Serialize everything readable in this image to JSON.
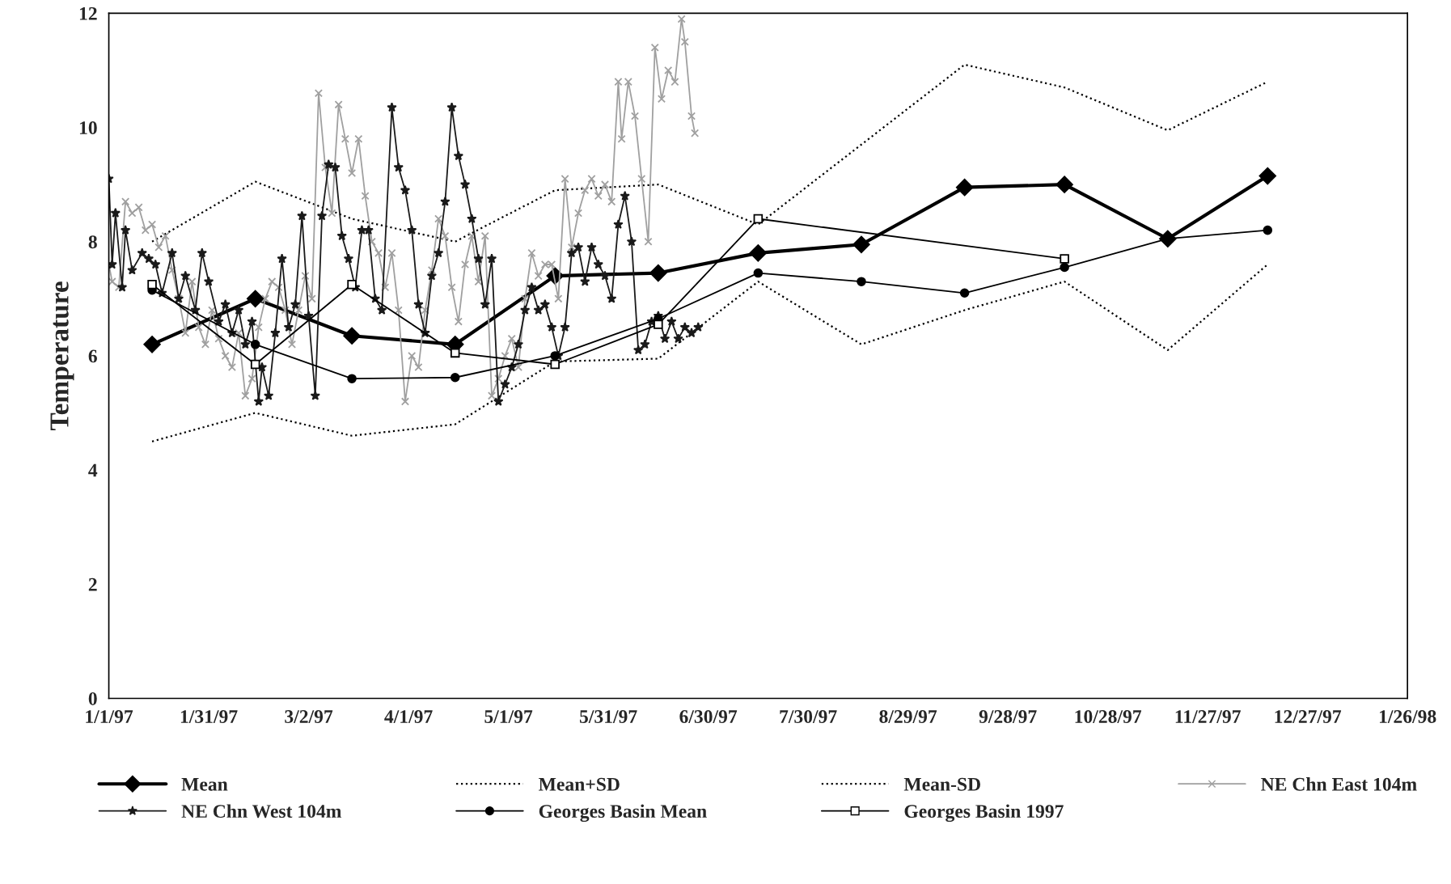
{
  "chart_data": {
    "type": "line",
    "ylabel": "Temperature",
    "ylim": [
      0,
      12
    ],
    "yticks": [
      0,
      2,
      4,
      6,
      8,
      10,
      12
    ],
    "xlim": [
      "1997-01-01",
      "1998-01-26"
    ],
    "xticks": [
      {
        "value": "1997-01-01",
        "label": "1/1/97"
      },
      {
        "value": "1997-01-31",
        "label": "1/31/97"
      },
      {
        "value": "1997-03-02",
        "label": "3/2/97"
      },
      {
        "value": "1997-04-01",
        "label": "4/1/97"
      },
      {
        "value": "1997-05-01",
        "label": "5/1/97"
      },
      {
        "value": "1997-05-31",
        "label": "5/31/97"
      },
      {
        "value": "1997-06-30",
        "label": "6/30/97"
      },
      {
        "value": "1997-07-30",
        "label": "7/30/97"
      },
      {
        "value": "1997-08-29",
        "label": "8/29/97"
      },
      {
        "value": "1997-09-28",
        "label": "9/28/97"
      },
      {
        "value": "1997-10-28",
        "label": "10/28/97"
      },
      {
        "value": "1997-11-27",
        "label": "11/27/97"
      },
      {
        "value": "1997-12-27",
        "label": "12/27/97"
      },
      {
        "value": "1998-01-26",
        "label": "1/26/98"
      }
    ],
    "grid": false,
    "legend": "bottom",
    "series": [
      {
        "name": "Mean",
        "color": "#000000",
        "marker": "diamond",
        "line_style": "solid",
        "x": [
          "1997-01-14",
          "1997-02-14",
          "1997-03-15",
          "1997-04-15",
          "1997-05-15",
          "1997-06-15",
          "1997-07-15",
          "1997-08-15",
          "1997-09-15",
          "1997-10-15",
          "1997-11-15",
          "1997-12-15"
        ],
        "values": [
          6.2,
          7.0,
          6.35,
          6.2,
          7.4,
          7.45,
          7.8,
          7.95,
          8.95,
          9.0,
          8.05,
          9.15
        ]
      },
      {
        "name": "Mean+SD",
        "color": "#000000",
        "marker": "none",
        "line_style": "dotted",
        "x": [
          "1997-01-14",
          "1997-02-14",
          "1997-03-15",
          "1997-04-15",
          "1997-05-15",
          "1997-06-15",
          "1997-07-15",
          "1997-08-15",
          "1997-09-15",
          "1997-10-15",
          "1997-11-15",
          "1997-12-15"
        ],
        "values": [
          8.0,
          9.05,
          8.4,
          8.0,
          8.9,
          9.0,
          8.3,
          9.7,
          11.1,
          10.7,
          9.95,
          10.8
        ]
      },
      {
        "name": "Mean-SD",
        "color": "#000000",
        "marker": "none",
        "line_style": "dotted",
        "x": [
          "1997-01-14",
          "1997-02-14",
          "1997-03-15",
          "1997-04-15",
          "1997-05-15",
          "1997-06-15",
          "1997-07-15",
          "1997-08-15",
          "1997-09-15",
          "1997-10-15",
          "1997-11-15",
          "1997-12-15"
        ],
        "values": [
          4.5,
          5.0,
          4.6,
          4.8,
          5.9,
          5.95,
          7.3,
          6.2,
          6.8,
          7.3,
          6.1,
          7.6
        ]
      },
      {
        "name": "NE Chn East 104m",
        "color": "#a0a0a0",
        "marker": "cross",
        "line_style": "solid",
        "x": [
          "1997-01-01",
          "1997-01-02",
          "1997-01-04",
          "1997-01-06",
          "1997-01-08",
          "1997-01-10",
          "1997-01-12",
          "1997-01-14",
          "1997-01-16",
          "1997-01-18",
          "1997-01-20",
          "1997-01-22",
          "1997-01-24",
          "1997-01-26",
          "1997-01-28",
          "1997-01-30",
          "1997-02-01",
          "1997-02-03",
          "1997-02-05",
          "1997-02-07",
          "1997-02-09",
          "1997-02-11",
          "1997-02-13",
          "1997-02-15",
          "1997-02-17",
          "1997-02-19",
          "1997-02-21",
          "1997-02-23",
          "1997-02-25",
          "1997-02-27",
          "1997-03-01",
          "1997-03-03",
          "1997-03-05",
          "1997-03-07",
          "1997-03-09",
          "1997-03-11",
          "1997-03-13",
          "1997-03-15",
          "1997-03-17",
          "1997-03-19",
          "1997-03-21",
          "1997-03-23",
          "1997-03-25",
          "1997-03-27",
          "1997-03-29",
          "1997-03-31",
          "1997-04-02",
          "1997-04-04",
          "1997-04-06",
          "1997-04-08",
          "1997-04-10",
          "1997-04-12",
          "1997-04-14",
          "1997-04-16",
          "1997-04-18",
          "1997-04-20",
          "1997-04-22",
          "1997-04-24",
          "1997-04-26",
          "1997-04-28",
          "1997-04-30",
          "1997-05-02",
          "1997-05-04",
          "1997-05-06",
          "1997-05-08",
          "1997-05-10",
          "1997-05-12",
          "1997-05-14",
          "1997-05-16",
          "1997-05-18",
          "1997-05-20",
          "1997-05-22",
          "1997-05-24",
          "1997-05-26",
          "1997-05-28",
          "1997-05-30",
          "1997-06-01",
          "1997-06-03",
          "1997-06-04",
          "1997-06-06",
          "1997-06-08",
          "1997-06-10",
          "1997-06-12",
          "1997-06-14",
          "1997-06-16",
          "1997-06-18",
          "1997-06-20",
          "1997-06-22",
          "1997-06-23",
          "1997-06-25",
          "1997-06-26"
        ],
        "values": [
          7.6,
          7.3,
          7.2,
          8.7,
          8.5,
          8.6,
          8.2,
          8.3,
          7.9,
          8.1,
          7.5,
          7.0,
          6.4,
          7.3,
          6.5,
          6.2,
          6.8,
          6.3,
          6.0,
          5.8,
          6.4,
          5.3,
          5.6,
          6.5,
          7.0,
          7.3,
          7.2,
          6.8,
          6.2,
          6.8,
          7.4,
          7.0,
          10.6,
          9.3,
          8.5,
          10.4,
          9.8,
          9.2,
          9.8,
          8.8,
          8.0,
          7.8,
          7.2,
          7.8,
          6.8,
          5.2,
          6.0,
          5.8,
          6.8,
          7.5,
          8.4,
          8.1,
          7.2,
          6.6,
          7.6,
          8.1,
          7.3,
          8.1,
          5.3,
          5.6,
          6.0,
          6.3,
          5.8,
          7.0,
          7.8,
          7.4,
          7.6,
          7.6,
          7.0,
          9.1,
          7.9,
          8.5,
          8.9,
          9.1,
          8.8,
          9.0,
          8.7,
          10.8,
          9.8,
          10.8,
          10.2,
          9.1,
          8.0,
          11.4,
          10.5,
          11.0,
          10.8,
          11.9,
          11.5,
          10.2,
          9.9
        ]
      },
      {
        "name": "NE Chn West 104m",
        "color": "#1a1a1a",
        "marker": "star",
        "line_style": "solid",
        "x": [
          "1997-01-01",
          "1997-01-02",
          "1997-01-03",
          "1997-01-05",
          "1997-01-06",
          "1997-01-08",
          "1997-01-11",
          "1997-01-13",
          "1997-01-15",
          "1997-01-17",
          "1997-01-20",
          "1997-01-22",
          "1997-01-24",
          "1997-01-27",
          "1997-01-29",
          "1997-01-31",
          "1997-02-03",
          "1997-02-05",
          "1997-02-07",
          "1997-02-09",
          "1997-02-11",
          "1997-02-13",
          "1997-02-15",
          "1997-02-16",
          "1997-02-18",
          "1997-02-20",
          "1997-02-22",
          "1997-02-24",
          "1997-02-26",
          "1997-02-28",
          "1997-03-02",
          "1997-03-04",
          "1997-03-06",
          "1997-03-08",
          "1997-03-10",
          "1997-03-12",
          "1997-03-14",
          "1997-03-16",
          "1997-03-18",
          "1997-03-20",
          "1997-03-22",
          "1997-03-24",
          "1997-03-27",
          "1997-03-29",
          "1997-03-31",
          "1997-04-02",
          "1997-04-04",
          "1997-04-06",
          "1997-04-08",
          "1997-04-10",
          "1997-04-12",
          "1997-04-14",
          "1997-04-16",
          "1997-04-18",
          "1997-04-20",
          "1997-04-22",
          "1997-04-24",
          "1997-04-26",
          "1997-04-28",
          "1997-04-30",
          "1997-05-02",
          "1997-05-04",
          "1997-05-06",
          "1997-05-08",
          "1997-05-10",
          "1997-05-12",
          "1997-05-14",
          "1997-05-16",
          "1997-05-18",
          "1997-05-20",
          "1997-05-22",
          "1997-05-24",
          "1997-05-26",
          "1997-05-28",
          "1997-05-30",
          "1997-06-01",
          "1997-06-03",
          "1997-06-05",
          "1997-06-07",
          "1997-06-09",
          "1997-06-11",
          "1997-06-13",
          "1997-06-15",
          "1997-06-17",
          "1997-06-19",
          "1997-06-21",
          "1997-06-23",
          "1997-06-25",
          "1997-06-27"
        ],
        "values": [
          9.1,
          7.6,
          8.5,
          7.2,
          8.2,
          7.5,
          7.8,
          7.7,
          7.6,
          7.1,
          7.8,
          7.0,
          7.4,
          6.8,
          7.8,
          7.3,
          6.6,
          6.9,
          6.4,
          6.8,
          6.2,
          6.6,
          5.2,
          5.8,
          5.3,
          6.4,
          7.7,
          6.5,
          6.9,
          8.45,
          6.7,
          5.3,
          8.45,
          9.35,
          9.3,
          8.1,
          7.7,
          7.2,
          8.2,
          8.2,
          7.0,
          6.8,
          10.35,
          9.3,
          8.9,
          8.2,
          6.9,
          6.4,
          7.4,
          7.8,
          8.7,
          10.35,
          9.5,
          9.0,
          8.4,
          7.7,
          6.9,
          7.7,
          5.2,
          5.5,
          5.8,
          6.2,
          6.8,
          7.2,
          6.8,
          6.9,
          6.5,
          6.0,
          6.5,
          7.8,
          7.9,
          7.3,
          7.9,
          7.6,
          7.4,
          7.0,
          8.3,
          8.8,
          8.0,
          6.1,
          6.2,
          6.6,
          6.7,
          6.3,
          6.6,
          6.3,
          6.5,
          6.4,
          6.5
        ]
      },
      {
        "name": "Georges Basin Mean",
        "color": "#000000",
        "marker": "circle",
        "line_style": "solid",
        "x": [
          "1997-01-14",
          "1997-02-14",
          "1997-03-15",
          "1997-04-15",
          "1997-05-15",
          "1997-06-15",
          "1997-07-15",
          "1997-08-15",
          "1997-09-15",
          "1997-10-15",
          "1997-11-15",
          "1997-12-15"
        ],
        "values": [
          7.15,
          6.2,
          5.6,
          5.62,
          6.0,
          6.65,
          7.45,
          7.3,
          7.1,
          7.55,
          8.05,
          8.2
        ]
      },
      {
        "name": "Georges Basin 1997",
        "color": "#000000",
        "marker": "square",
        "line_style": "solid",
        "x": [
          "1997-01-14",
          "1997-02-14",
          "1997-03-15",
          "1997-04-15",
          "1997-05-15",
          "1997-06-15",
          "1997-07-15",
          "1997-10-15"
        ],
        "values": [
          7.25,
          5.85,
          7.25,
          6.05,
          5.85,
          6.55,
          8.4,
          7.7
        ]
      }
    ]
  }
}
